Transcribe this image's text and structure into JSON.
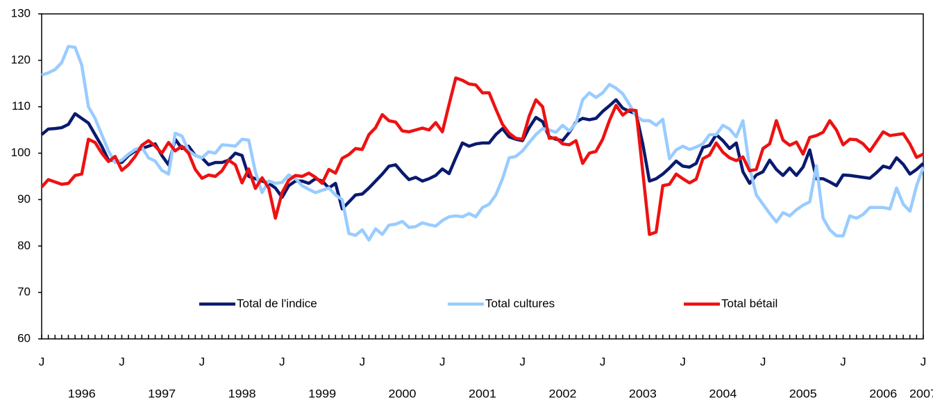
{
  "chart_data": {
    "type": "line",
    "categories": [
      "J",
      null,
      null,
      null,
      null,
      null,
      null,
      null,
      null,
      null,
      null,
      null,
      "J",
      null,
      null,
      null,
      null,
      null,
      null,
      null,
      null,
      null,
      null,
      null,
      "J",
      null,
      null,
      null,
      null,
      null,
      null,
      null,
      null,
      null,
      null,
      null,
      "J",
      null,
      null,
      null,
      null,
      null,
      null,
      null,
      null,
      null,
      null,
      null,
      "J",
      null,
      null,
      null,
      null,
      null,
      null,
      null,
      null,
      null,
      null,
      null,
      "J",
      null,
      null,
      null,
      null,
      null,
      null,
      null,
      null,
      null,
      null,
      null,
      "J",
      null,
      null,
      null,
      null,
      null,
      null,
      null,
      null,
      null,
      null,
      null,
      "J",
      null,
      null,
      null,
      null,
      null,
      null,
      null,
      null,
      null,
      null,
      null,
      "J",
      null,
      null,
      null,
      null,
      null,
      null,
      null,
      null,
      null,
      null,
      null,
      "J",
      null,
      null,
      null,
      null,
      null,
      null,
      null,
      null,
      null,
      null,
      null,
      "J",
      null,
      null,
      null,
      null,
      null,
      null,
      null,
      null,
      null,
      null,
      null,
      "J"
    ],
    "years": [
      "1996",
      "1997",
      "1998",
      "1999",
      "2000",
      "2001",
      "2002",
      "2003",
      "2004",
      "2005",
      "2006",
      "2007"
    ],
    "ylim": [
      60,
      130
    ],
    "yticks": [
      60,
      70,
      80,
      90,
      100,
      110,
      120,
      130
    ],
    "legend": "bottom",
    "series": [
      {
        "name": "Total de l'indice",
        "color": "#0a1a6e",
        "values": [
          104,
          105.2,
          105.3,
          105.5,
          106.2,
          108.5,
          107.5,
          106.5,
          104,
          101.5,
          98.5,
          98.5,
          98,
          99.5,
          100.5,
          101,
          101.5,
          102,
          99.5,
          97.5,
          103,
          101,
          101.5,
          99.5,
          99,
          97.5,
          98,
          98,
          98.5,
          100,
          99.5,
          95,
          94.5,
          94,
          93.5,
          92.5,
          90.5,
          93,
          94,
          94,
          93.5,
          94.5,
          94,
          92.5,
          93.5,
          88,
          89.5,
          91,
          91.2,
          92.5,
          94,
          95.5,
          97.2,
          97.5,
          95.8,
          94.3,
          94.8,
          94,
          94.5,
          95.2,
          96.6,
          95.6,
          99,
          102.2,
          101.5,
          102,
          102.2,
          102.2,
          104,
          105.3,
          103.5,
          103,
          102.7,
          105.5,
          107.7,
          106.8,
          103.5,
          103,
          102.7,
          104.5,
          106.7,
          107.5,
          107.2,
          107.5,
          109,
          110.2,
          111.5,
          109.7,
          109,
          108.5,
          102,
          94,
          94.5,
          95.5,
          96.8,
          98.3,
          97.2,
          97,
          97.8,
          101.2,
          101.7,
          104,
          102.7,
          101,
          102.2,
          96,
          93.5,
          95.3,
          96,
          98.5,
          96.5,
          95.2,
          96.8,
          95.2,
          97,
          100.7,
          94.5,
          94.5,
          93.8,
          93,
          95.3,
          95.2,
          95,
          94.8,
          94.6,
          95.8,
          97.2,
          96.8,
          99,
          97.6,
          95.5,
          96.5,
          97.8
        ]
      },
      {
        "name": "Total cultures",
        "color": "#99ccff",
        "values": [
          116.8,
          117.3,
          118,
          119.5,
          123,
          122.8,
          119,
          110,
          107.5,
          104,
          100.5,
          98,
          98.5,
          99.8,
          100.8,
          101.3,
          99,
          98.3,
          96.3,
          95.5,
          104.3,
          103.7,
          100.5,
          99.5,
          99,
          100.3,
          100,
          101.8,
          101.7,
          101.5,
          103,
          102.8,
          96,
          91.5,
          94,
          93.5,
          93.7,
          95.3,
          94.5,
          93,
          92.2,
          91.5,
          92,
          92.5,
          91,
          90,
          82.7,
          82.3,
          83.5,
          81.3,
          83.7,
          82.5,
          84.5,
          84.7,
          85.3,
          84,
          84.2,
          85,
          84.6,
          84.3,
          85.5,
          86.3,
          86.5,
          86.3,
          87,
          86.3,
          88.3,
          89,
          91,
          94.5,
          99,
          99.3,
          100.5,
          102.3,
          104,
          105.3,
          105,
          104.5,
          106,
          104.8,
          106.5,
          111.5,
          113,
          112,
          113,
          114.8,
          114,
          112.8,
          110.5,
          108,
          107,
          107,
          106,
          107.3,
          98.8,
          100.7,
          101.5,
          100.8,
          101.3,
          102,
          104,
          104,
          106,
          105.2,
          103.5,
          107,
          96.8,
          91,
          89,
          87,
          85.2,
          87.2,
          86.5,
          87.8,
          88.8,
          89.5,
          97.3,
          86,
          83.5,
          82.2,
          82.2,
          86.5,
          86,
          86.8,
          88.3,
          88.3,
          88.3,
          88,
          92.5,
          89,
          87.5,
          93,
          97
        ]
      },
      {
        "name": "Total bétail",
        "color": "#ee1111",
        "values": [
          92.7,
          94.3,
          93.8,
          93.3,
          93.5,
          95.2,
          95.5,
          103,
          102.3,
          100,
          98.2,
          99.3,
          96.3,
          97.5,
          99.3,
          101.7,
          102.7,
          101.5,
          100,
          102.3,
          100.5,
          101.5,
          100,
          96.5,
          94.6,
          95.3,
          95,
          96.2,
          98.5,
          97.5,
          93.6,
          96.6,
          92.4,
          94.7,
          92.5,
          86,
          91.5,
          94.2,
          95.2,
          95,
          95.7,
          94.8,
          93.5,
          96.5,
          95.7,
          98.9,
          99.7,
          101,
          100.8,
          104,
          105.5,
          108.3,
          107,
          106.7,
          104.8,
          104.6,
          105,
          105.4,
          105,
          106.6,
          104.6,
          110.5,
          116.2,
          115.7,
          114.9,
          114.7,
          113,
          113,
          109.5,
          106.2,
          104.3,
          103.2,
          103,
          108,
          111.5,
          110,
          103.2,
          103.3,
          102,
          101.8,
          102.7,
          97.8,
          100,
          100.4,
          103,
          107,
          110.3,
          108.2,
          109.3,
          109.2,
          96,
          82.5,
          83,
          93,
          93.3,
          95.5,
          94.5,
          93.6,
          94.4,
          98.8,
          99.6,
          102.2,
          100.2,
          99,
          98.4,
          99.2,
          96.2,
          96.5,
          101,
          102,
          107,
          102.8,
          101.7,
          102.4,
          99.8,
          103.4,
          103.8,
          104.5,
          107,
          105,
          101.8,
          103,
          102.9,
          102,
          100.4,
          102.5,
          104.6,
          103.8,
          104,
          104.2,
          102,
          99.1,
          99.8
        ]
      }
    ]
  }
}
